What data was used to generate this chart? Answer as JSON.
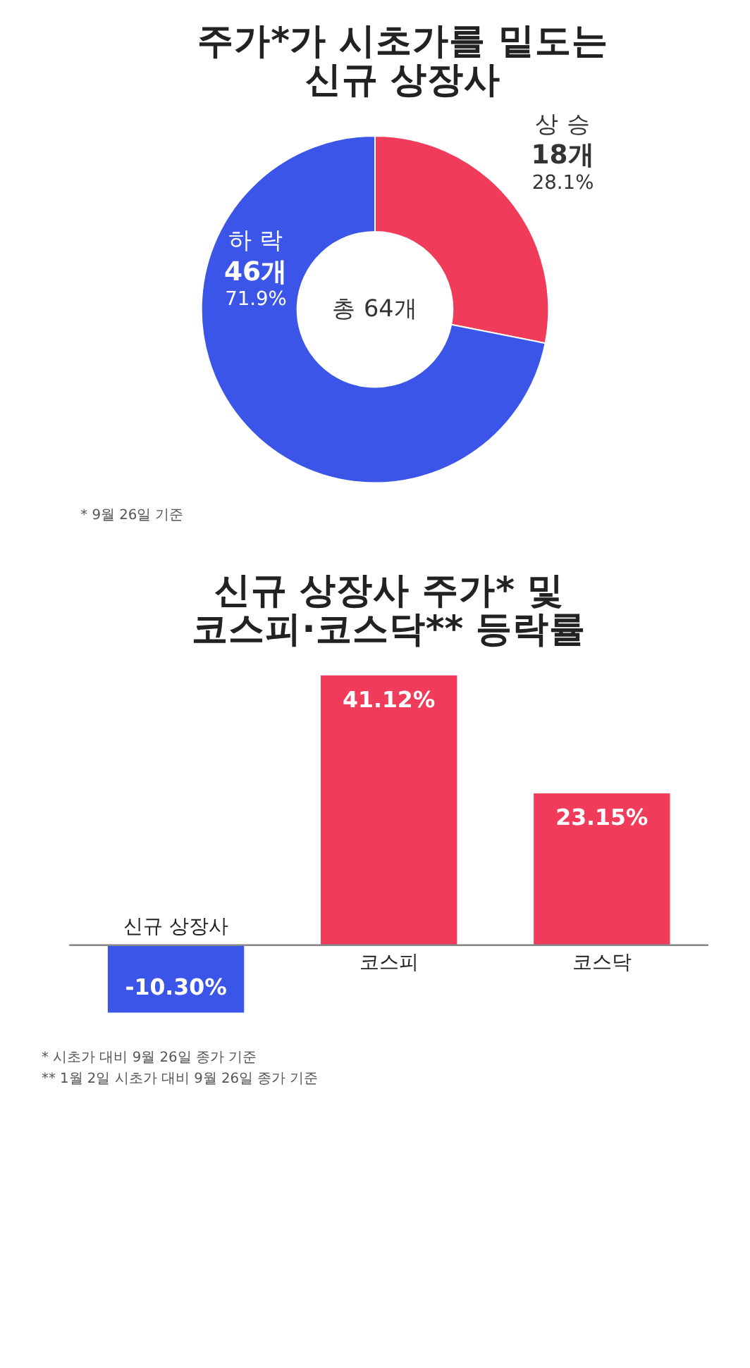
{
  "chart_data": [
    {
      "type": "donut",
      "title": "주가*가 시초가를 밑도는\n신규 상장사",
      "categories": [
        "상 승",
        "하 락"
      ],
      "values": [
        18,
        46
      ],
      "colors": [
        "#f03c5a",
        "#3a55e8"
      ],
      "value_labels": [
        "18개",
        "46개"
      ],
      "annotations": [
        "총 64개",
        "* 9월 26일 기준",
        {
          "text": "28.1%",
          "x": "상 승"
        },
        {
          "text": "71.9%",
          "x": "하 락"
        }
      ]
    },
    {
      "type": "bar",
      "title": "신규 상장사 주가* 및\n코스피·코스닥** 등락률",
      "categories": [
        "신규 상장사",
        "코스피",
        "코스닥"
      ],
      "values": [
        -10.3,
        41.12,
        23.15
      ],
      "colors": [
        "#3a55e8",
        "#f03c5a",
        "#f03c5a"
      ],
      "value_labels": [
        "-10.30%",
        "41.12%",
        "23.15%"
      ],
      "annotations": [
        "* 시초가 대비 9월 26일 종가 기준",
        "** 1월 2일 시초가 대비 9월 26일 종가 기준"
      ]
    }
  ]
}
